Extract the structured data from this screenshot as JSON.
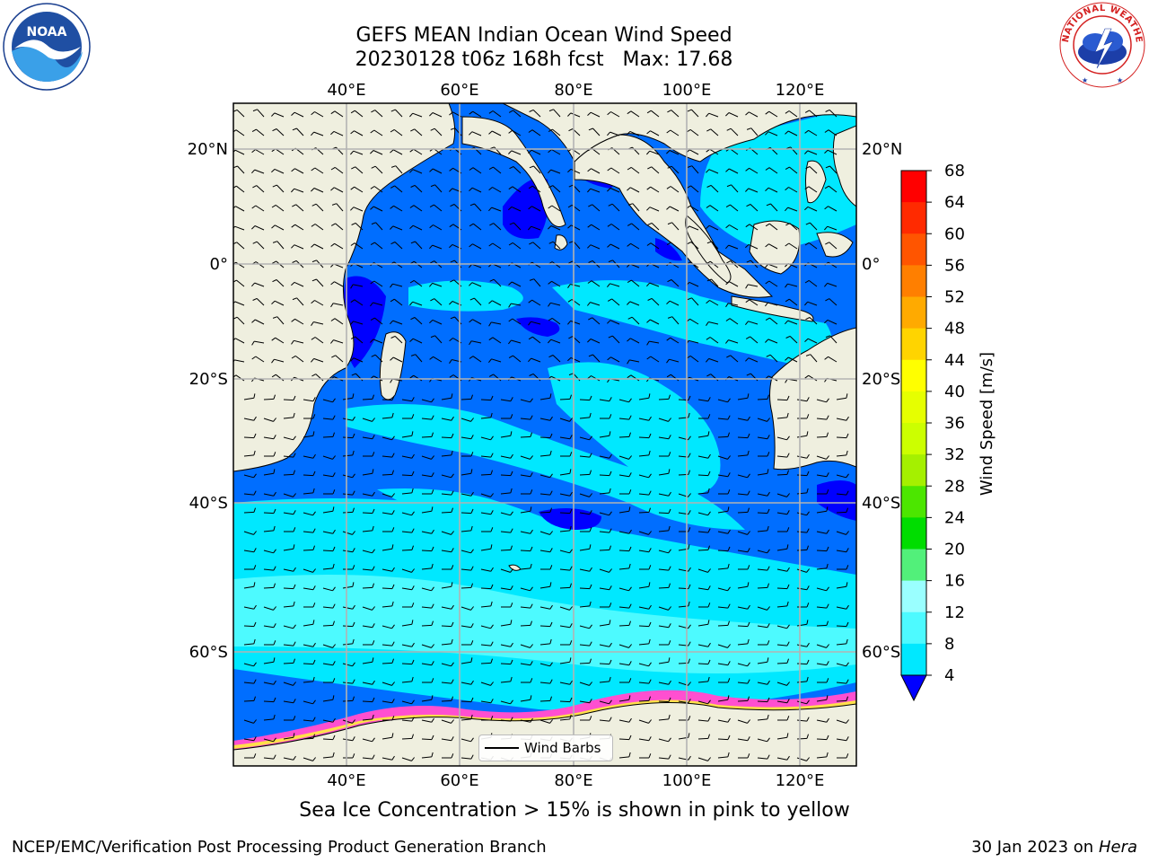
{
  "title": {
    "line1": "GEFS MEAN Indian Ocean Wind Speed",
    "line2": "20230128 t06z 168h fcst   Max: 17.68"
  },
  "logos": {
    "left": {
      "icon": "noaa-logo",
      "text": "NOAA",
      "ring_text": "NATIONAL OCEANIC AND ATMOSPHERIC ADMINISTRATION · U.S. DEPARTMENT OF COMMERCE"
    },
    "right": {
      "icon": "nws-logo",
      "ring_text": "NATIONAL WEATHER SERVICE"
    }
  },
  "map": {
    "lon_ticks": [
      "40°E",
      "60°E",
      "80°E",
      "100°E",
      "120°E"
    ],
    "lat_ticks_left": [
      "20°N",
      "0°",
      "20°S",
      "40°S",
      "60°S"
    ],
    "lat_ticks_right": [
      "20°N",
      "0°",
      "20°S",
      "40°S",
      "60°S"
    ],
    "extent": {
      "lon": [
        20,
        130
      ],
      "lat": [
        -72,
        28
      ]
    }
  },
  "legend": {
    "label": "Wind Barbs"
  },
  "colorbar": {
    "label": "Wind Speed [m/s]",
    "ticks": [
      "68",
      "64",
      "60",
      "56",
      "52",
      "48",
      "44",
      "40",
      "36",
      "32",
      "28",
      "24",
      "20",
      "16",
      "12",
      "8",
      "4"
    ],
    "colors": [
      "#ff0000",
      "#ff2a00",
      "#ff5500",
      "#ff7f00",
      "#ffaa00",
      "#ffd400",
      "#ffff00",
      "#e6ff00",
      "#ccff00",
      "#a5f000",
      "#4ce600",
      "#00dd00",
      "#52f07a",
      "#9affff",
      "#4dfaff",
      "#00e8ff",
      "#006eff"
    ],
    "under_color": "#0000ff"
  },
  "caption": "Sea Ice Concentration > 15% is shown in pink to yellow",
  "footer": {
    "left": "NCEP/EMC/Verification Post Processing Product Generation Branch",
    "right_date": "30 Jan 2023 on ",
    "right_host": "Hera"
  }
}
